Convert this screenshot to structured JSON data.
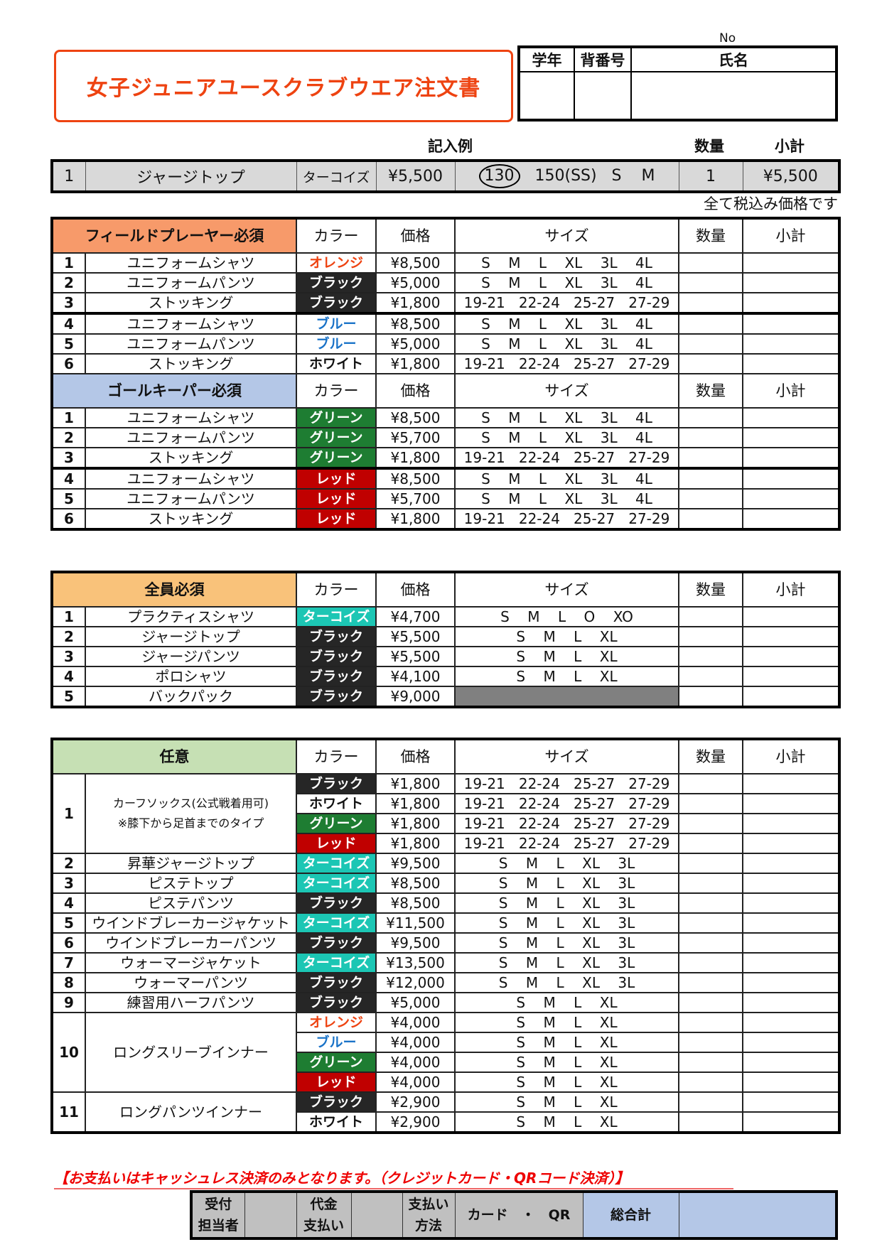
{
  "title": "女子ジュニアユースクラブウエア注文書",
  "student_box": {
    "no_label": "No",
    "grade": "学年",
    "number": "背番号",
    "name": "氏名"
  },
  "example": {
    "caption": "記入例",
    "qty_label": "数量",
    "subtotal_label": "小計",
    "no": "1",
    "item": "ジャージトップ",
    "color": "ターコイズ",
    "price": "¥5,500",
    "size_circled": "130",
    "sizes_rest": "   150(SS)   S    M",
    "qty": "1",
    "subtotal": "¥5,500"
  },
  "tax_note": "全て税込み価格です",
  "columns": {
    "color": "カラー",
    "price": "価格",
    "size": "サイズ",
    "qty": "数量",
    "subtotal": "小計"
  },
  "color_styles": {
    "orange": {
      "bg": "#ffffff",
      "fg": "#ee4311"
    },
    "black": {
      "bg": "#262626",
      "fg": "#ffffff"
    },
    "blue": {
      "bg": "#ffffff",
      "fg": "#1a73c8"
    },
    "white": {
      "bg": "#ffffff",
      "fg": "#111111"
    },
    "green": {
      "bg": "#1e7d32",
      "fg": "#ffffff"
    },
    "red": {
      "bg": "#c00000",
      "fg": "#ffffff"
    },
    "turquoise": {
      "bg": "#1cc6b4",
      "fg": "#ffffff"
    }
  },
  "sections": [
    {
      "title": "フィールドプレーヤー必須",
      "header_color": "#f79a6a",
      "items": [
        {
          "no": "1",
          "name": "ユニフォームシャツ",
          "variants": [
            {
              "color": "オレンジ",
              "style": "orange",
              "price": "¥8,500",
              "sizes": "S    M    L    XL    3L    4L"
            }
          ]
        },
        {
          "no": "2",
          "name": "ユニフォームパンツ",
          "variants": [
            {
              "color": "ブラック",
              "style": "black",
              "price": "¥5,000",
              "sizes": "S    M    L    XL    3L    4L"
            }
          ]
        },
        {
          "no": "3",
          "name": "ストッキング",
          "variants": [
            {
              "color": "ブラック",
              "style": "black",
              "price": "¥1,800",
              "sizes": "19-21   22-24   25-27   27-29"
            }
          ]
        },
        {
          "no": "4",
          "name": "ユニフォームシャツ",
          "variants": [
            {
              "color": "ブルー",
              "style": "blue",
              "price": "¥8,500",
              "sizes": "S    M    L    XL    3L    4L"
            }
          ]
        },
        {
          "no": "5",
          "name": "ユニフォームパンツ",
          "variants": [
            {
              "color": "ブルー",
              "style": "blue",
              "price": "¥5,000",
              "sizes": "S    M    L    XL    3L    4L"
            }
          ]
        },
        {
          "no": "6",
          "name": "ストッキング",
          "variants": [
            {
              "color": "ホワイト",
              "style": "white",
              "price": "¥1,800",
              "sizes": "19-21   22-24   25-27   27-29"
            }
          ]
        }
      ]
    },
    {
      "title": "ゴールキーパー必須",
      "header_color": "#b4c7e7",
      "items": [
        {
          "no": "1",
          "name": "ユニフォームシャツ",
          "variants": [
            {
              "color": "グリーン",
              "style": "green",
              "price": "¥8,500",
              "sizes": "S    M    L    XL    3L    4L"
            }
          ]
        },
        {
          "no": "2",
          "name": "ユニフォームパンツ",
          "variants": [
            {
              "color": "グリーン",
              "style": "green",
              "price": "¥5,700",
              "sizes": "S    M    L    XL    3L    4L"
            }
          ]
        },
        {
          "no": "3",
          "name": "ストッキング",
          "variants": [
            {
              "color": "グリーン",
              "style": "green",
              "price": "¥1,800",
              "sizes": "19-21   22-24   25-27   27-29"
            }
          ]
        },
        {
          "no": "4",
          "name": "ユニフォームシャツ",
          "variants": [
            {
              "color": "レッド",
              "style": "red",
              "price": "¥8,500",
              "sizes": "S    M    L    XL    3L    4L"
            }
          ]
        },
        {
          "no": "5",
          "name": "ユニフォームパンツ",
          "variants": [
            {
              "color": "レッド",
              "style": "red",
              "price": "¥5,700",
              "sizes": "S    M    L    XL    3L    4L"
            }
          ]
        },
        {
          "no": "6",
          "name": "ストッキング",
          "variants": [
            {
              "color": "レッド",
              "style": "red",
              "price": "¥1,800",
              "sizes": "19-21   22-24   25-27   27-29"
            }
          ]
        }
      ]
    },
    {
      "title": "全員必須",
      "header_color": "#f9c27a",
      "items": [
        {
          "no": "1",
          "name": "プラクティスシャツ",
          "variants": [
            {
              "color": "ターコイズ",
              "style": "turquoise",
              "price": "¥4,700",
              "sizes": "S    M    L    O    XO"
            }
          ]
        },
        {
          "no": "2",
          "name": "ジャージトップ",
          "variants": [
            {
              "color": "ブラック",
              "style": "black",
              "price": "¥5,500",
              "sizes": "S    M    L    XL"
            }
          ]
        },
        {
          "no": "3",
          "name": "ジャージパンツ",
          "variants": [
            {
              "color": "ブラック",
              "style": "black",
              "price": "¥5,500",
              "sizes": "S    M    L    XL"
            }
          ]
        },
        {
          "no": "4",
          "name": "ポロシャツ",
          "variants": [
            {
              "color": "ブラック",
              "style": "black",
              "price": "¥4,100",
              "sizes": "S    M    L    XL"
            }
          ]
        },
        {
          "no": "5",
          "name": "バックパック",
          "variants": [
            {
              "color": "ブラック",
              "style": "black",
              "price": "¥9,000",
              "sizes": "",
              "size_available": false
            }
          ]
        }
      ]
    },
    {
      "title": "任意",
      "header_color": "#c6e0b4",
      "items": [
        {
          "no": "1",
          "name": "カーフソックス(公式戦着用可)",
          "note": "※膝下から足首までのタイプ",
          "variants": [
            {
              "color": "ブラック",
              "style": "black",
              "price": "¥1,800",
              "sizes": "19-21   22-24   25-27   27-29"
            },
            {
              "color": "ホワイト",
              "style": "white",
              "price": "¥1,800",
              "sizes": "19-21   22-24   25-27   27-29"
            },
            {
              "color": "グリーン",
              "style": "green",
              "price": "¥1,800",
              "sizes": "19-21   22-24   25-27   27-29"
            },
            {
              "color": "レッド",
              "style": "red",
              "price": "¥1,800",
              "sizes": "19-21   22-24   25-27   27-29"
            }
          ]
        },
        {
          "no": "2",
          "name": "昇華ジャージトップ",
          "variants": [
            {
              "color": "ターコイズ",
              "style": "turquoise",
              "price": "¥9,500",
              "sizes": "S    M    L    XL    3L"
            }
          ]
        },
        {
          "no": "3",
          "name": "ピステトップ",
          "variants": [
            {
              "color": "ターコイズ",
              "style": "turquoise",
              "price": "¥8,500",
              "sizes": "S    M    L    XL    3L"
            }
          ]
        },
        {
          "no": "4",
          "name": "ピステパンツ",
          "variants": [
            {
              "color": "ブラック",
              "style": "black",
              "price": "¥8,500",
              "sizes": "S    M    L    XL    3L"
            }
          ]
        },
        {
          "no": "5",
          "name": "ウインドブレーカージャケット",
          "variants": [
            {
              "color": "ターコイズ",
              "style": "turquoise",
              "price": "¥11,500",
              "sizes": "S    M    L    XL    3L"
            }
          ]
        },
        {
          "no": "6",
          "name": "ウインドブレーカーパンツ",
          "variants": [
            {
              "color": "ブラック",
              "style": "black",
              "price": "¥9,500",
              "sizes": "S    M    L    XL    3L"
            }
          ]
        },
        {
          "no": "7",
          "name": "ウォーマージャケット",
          "variants": [
            {
              "color": "ターコイズ",
              "style": "turquoise",
              "price": "¥13,500",
              "sizes": "S    M    L    XL    3L"
            }
          ]
        },
        {
          "no": "8",
          "name": "ウォーマーパンツ",
          "variants": [
            {
              "color": "ブラック",
              "style": "black",
              "price": "¥12,000",
              "sizes": "S    M    L    XL    3L"
            }
          ]
        },
        {
          "no": "9",
          "name": "練習用ハーフパンツ",
          "variants": [
            {
              "color": "ブラック",
              "style": "black",
              "price": "¥5,000",
              "sizes": "S    M    L    XL"
            }
          ]
        },
        {
          "no": "10",
          "name": "ロングスリーブインナー",
          "variants": [
            {
              "color": "オレンジ",
              "style": "orange",
              "price": "¥4,000",
              "sizes": "S    M    L    XL"
            },
            {
              "color": "ブルー",
              "style": "blue",
              "price": "¥4,000",
              "sizes": "S    M    L    XL"
            },
            {
              "color": "グリーン",
              "style": "green",
              "price": "¥4,000",
              "sizes": "S    M    L    XL"
            },
            {
              "color": "レッド",
              "style": "red",
              "price": "¥4,000",
              "sizes": "S    M    L    XL"
            }
          ]
        },
        {
          "no": "11",
          "name": "ロングパンツインナー",
          "variants": [
            {
              "color": "ブラック",
              "style": "black",
              "price": "¥2,900",
              "sizes": "S    M    L    XL"
            },
            {
              "color": "ホワイト",
              "style": "white",
              "price": "¥2,900",
              "sizes": "S    M    L    XL"
            }
          ]
        }
      ]
    }
  ],
  "payment_note": "【お支払いはキャッシュレス決済のみとなります。（クレジットカード・QRコード決済）】",
  "footer": {
    "reception_1": "受付",
    "reception_2": "担当者",
    "payment_1": "代金",
    "payment_2": "支払い",
    "method_1": "支払い",
    "method_2": "方法",
    "method_value": "カード　・　QR",
    "total_label": "総合計"
  }
}
